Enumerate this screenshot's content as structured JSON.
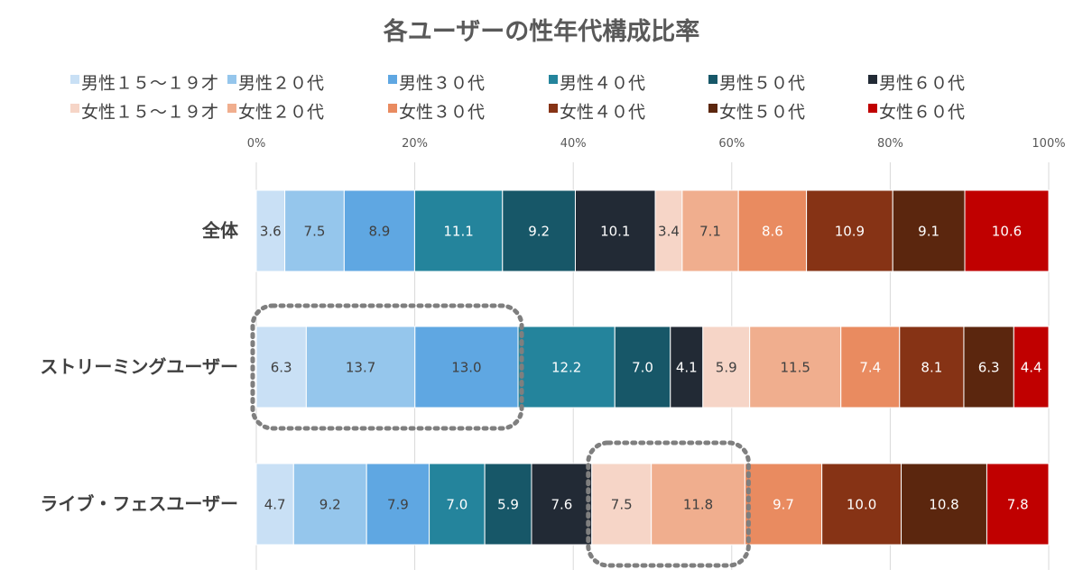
{
  "chart_data": {
    "type": "bar",
    "orientation": "horizontal",
    "stacked": true,
    "percent_stacked": true,
    "title": "各ユーザーの性年代構成比率",
    "categories": [
      "全体",
      "ストリーミングユーザー",
      "ライブ・フェスユーザー"
    ],
    "x_ticks": [
      "0%",
      "20%",
      "40%",
      "60%",
      "80%",
      "100%"
    ],
    "xlim": [
      0,
      100
    ],
    "grid": true,
    "legend_position": "top",
    "series": [
      {
        "name": "男性１５～１９才",
        "color": "#c9e0f5",
        "values": [
          3.6,
          6.3,
          4.7
        ]
      },
      {
        "name": "男性２０代",
        "color": "#95c6ec",
        "values": [
          7.5,
          13.7,
          9.2
        ]
      },
      {
        "name": "男性３０代",
        "color": "#5fa7e2",
        "values": [
          8.9,
          13.0,
          7.9
        ]
      },
      {
        "name": "男性４０代",
        "color": "#24849c",
        "values": [
          11.1,
          12.2,
          7.0
        ]
      },
      {
        "name": "男性５０代",
        "color": "#175768",
        "values": [
          9.2,
          7.0,
          5.9
        ]
      },
      {
        "name": "男性６０代",
        "color": "#222a35",
        "values": [
          10.1,
          4.1,
          7.6
        ]
      },
      {
        "name": "女性１５～１９才",
        "color": "#f6d5c7",
        "values": [
          3.4,
          5.9,
          7.5
        ]
      },
      {
        "name": "女性２０代",
        "color": "#f0ae8e",
        "values": [
          7.1,
          11.5,
          11.8
        ]
      },
      {
        "name": "女性３０代",
        "color": "#e98b60",
        "values": [
          8.6,
          7.4,
          9.7
        ]
      },
      {
        "name": "女性４０代",
        "color": "#863315",
        "values": [
          10.9,
          8.1,
          10.0
        ]
      },
      {
        "name": "女性５０代",
        "color": "#5b260e",
        "values": [
          9.1,
          6.3,
          10.8
        ]
      },
      {
        "name": "女性６０代",
        "color": "#c00000",
        "values": [
          10.6,
          4.4,
          7.8
        ]
      }
    ],
    "highlights": [
      {
        "category": "ストリーミングユーザー",
        "from_series": 0,
        "to_series": 2
      },
      {
        "category": "ライブ・フェスユーザー",
        "from_series": 6,
        "to_series": 7
      }
    ]
  }
}
